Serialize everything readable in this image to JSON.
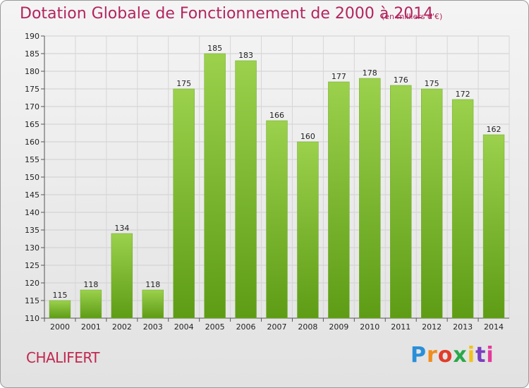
{
  "header": {
    "title": "Dotation Globale de Fonctionnement de 2000 à 2014",
    "unit": "(en milliers d'€)"
  },
  "footer": {
    "commune": "CHALIFERT",
    "logo": "Proxiti",
    "logo_colors": [
      "#2a8fd8",
      "#f28c1b",
      "#e23b2a",
      "#2aa84a",
      "#f2c21b",
      "#7a3fbf",
      "#e23b9b"
    ]
  },
  "chart_data": {
    "type": "bar",
    "title": "Dotation Globale de Fonctionnement de 2000 à 2014",
    "subtitle": "(en milliers d'€)",
    "xlabel": "",
    "ylabel": "",
    "categories": [
      "2000",
      "2001",
      "2002",
      "2003",
      "2004",
      "2005",
      "2006",
      "2007",
      "2008",
      "2009",
      "2010",
      "2011",
      "2012",
      "2013",
      "2014"
    ],
    "values": [
      115,
      118,
      134,
      118,
      175,
      185,
      183,
      166,
      160,
      177,
      178,
      176,
      175,
      172,
      162
    ],
    "ylim": [
      110,
      190
    ],
    "ytick_step": 5,
    "grid": true,
    "bar_color": "#86c13c"
  }
}
